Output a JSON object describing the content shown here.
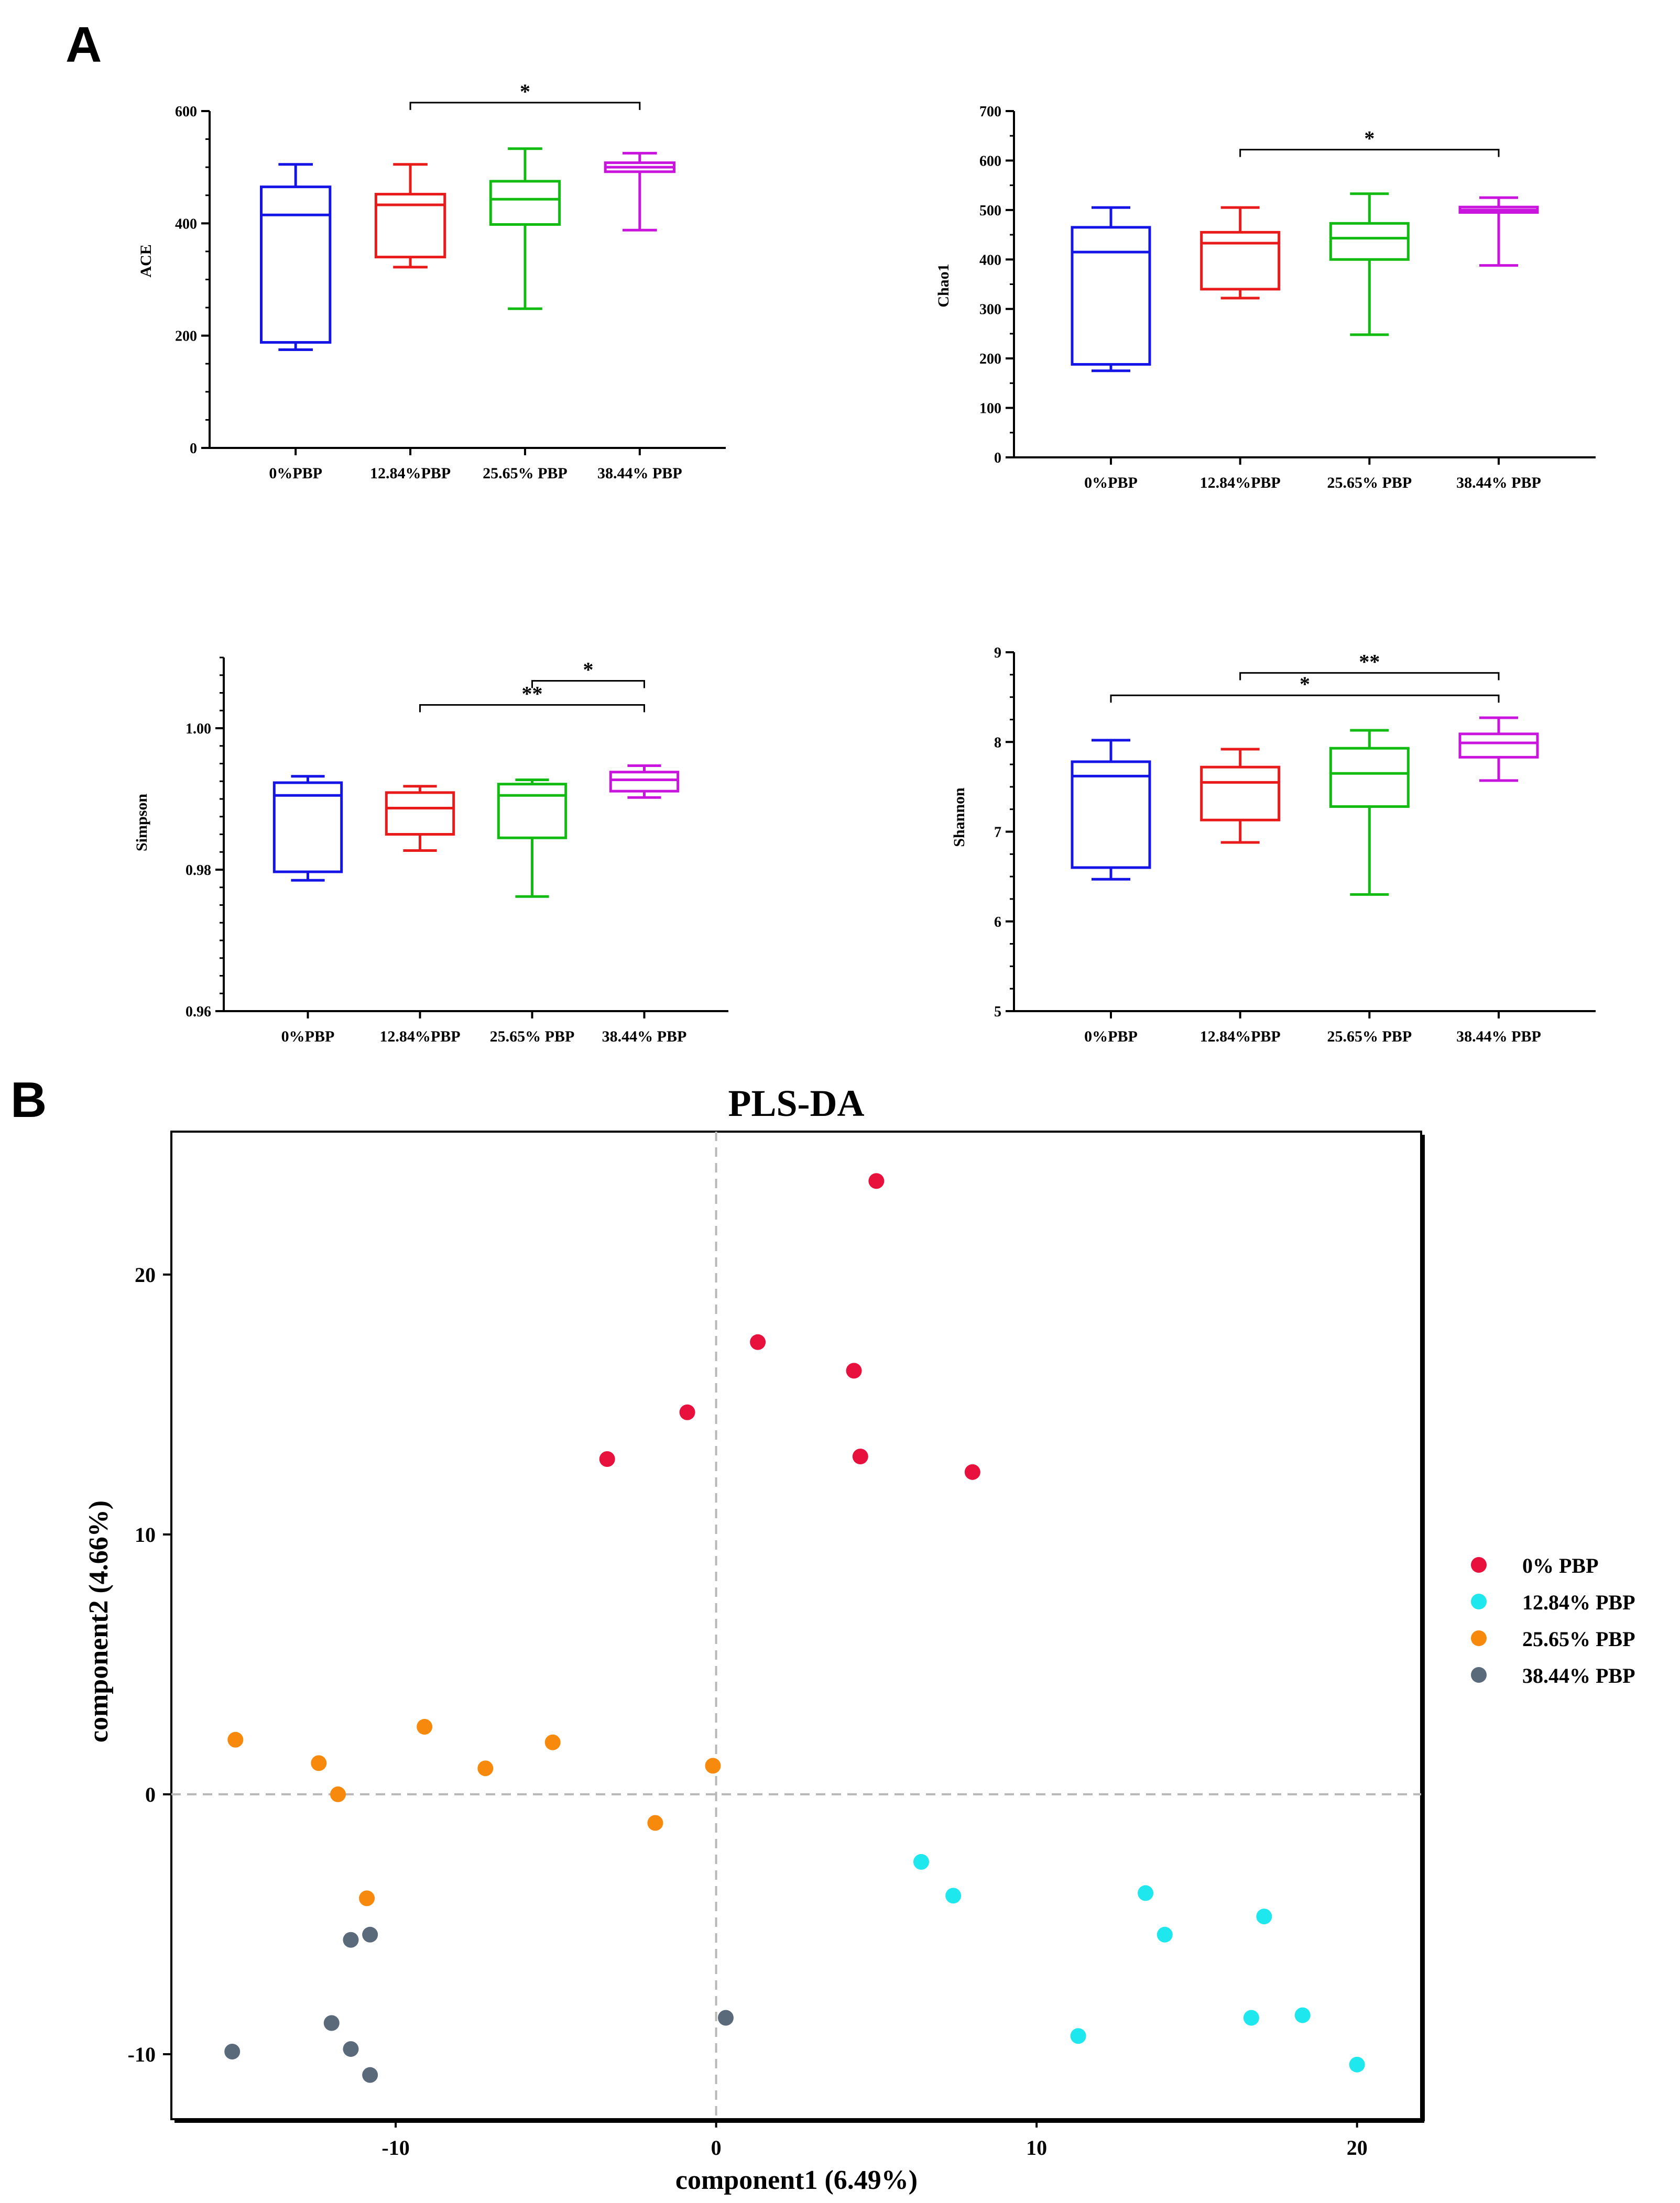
{
  "panel_labels": {
    "a": "A",
    "b": "B"
  },
  "colors": {
    "g0": "#1414e6",
    "g1": "#e81a1a",
    "g2": "#12bb12",
    "g3": "#c814dc",
    "red": "#e8103c",
    "cyan": "#1ee8ee",
    "orange": "#f7890c",
    "slate": "#5a6a7a",
    "axis": "#000000",
    "zero": "#b8b8b8"
  },
  "chart_data": [
    {
      "id": "ace",
      "type": "box",
      "ylabel": "ACE",
      "categories": [
        "0%PBP",
        "12.84%PBP",
        "25.65% PBP",
        "38.44% PBP"
      ],
      "ylim": [
        0,
        600
      ],
      "yticks": [
        {
          "v": 0,
          "label": "0"
        },
        {
          "v": 200,
          "label": "200"
        },
        {
          "v": 400,
          "label": "400"
        },
        {
          "v": 600,
          "label": "600"
        }
      ],
      "minor_step": 50,
      "boxes": [
        {
          "min": 175,
          "q1": 188,
          "median": 415,
          "q3": 465,
          "max": 505
        },
        {
          "min": 322,
          "q1": 340,
          "median": 433,
          "q3": 452,
          "max": 505
        },
        {
          "min": 248,
          "q1": 398,
          "median": 443,
          "q3": 475,
          "max": 533
        },
        {
          "min": 388,
          "q1": 492,
          "median": 500,
          "q3": 508,
          "max": 525
        }
      ],
      "sig": [
        {
          "from": 1,
          "to": 3,
          "y": 615,
          "label": "*"
        }
      ]
    },
    {
      "id": "chao1",
      "type": "box",
      "ylabel": "Chao1",
      "categories": [
        "0%PBP",
        "12.84%PBP",
        "25.65% PBP",
        "38.44% PBP"
      ],
      "ylim": [
        0,
        700
      ],
      "yticks": [
        {
          "v": 0,
          "label": "0"
        },
        {
          "v": 100,
          "label": "100"
        },
        {
          "v": 200,
          "label": "200"
        },
        {
          "v": 300,
          "label": "300"
        },
        {
          "v": 400,
          "label": "400"
        },
        {
          "v": 500,
          "label": "500"
        },
        {
          "v": 600,
          "label": "600"
        },
        {
          "v": 700,
          "label": "700"
        }
      ],
      "minor_step": 50,
      "boxes": [
        {
          "min": 175,
          "q1": 188,
          "median": 415,
          "q3": 465,
          "max": 505
        },
        {
          "min": 322,
          "q1": 340,
          "median": 433,
          "q3": 455,
          "max": 505
        },
        {
          "min": 248,
          "q1": 400,
          "median": 443,
          "q3": 473,
          "max": 533
        },
        {
          "min": 388,
          "q1": 495,
          "median": 500,
          "q3": 506,
          "max": 525
        }
      ],
      "sig": [
        {
          "from": 1,
          "to": 3,
          "y": 622,
          "label": "*"
        }
      ]
    },
    {
      "id": "simpson",
      "type": "box",
      "ylabel": "Simpson",
      "categories": [
        "0%PBP",
        "12.84%PBP",
        "25.65% PBP",
        "38.44% PBP"
      ],
      "ylim": [
        0.96,
        1.01
      ],
      "yticks": [
        {
          "v": 0.96,
          "label": "0.96"
        },
        {
          "v": 0.98,
          "label": "0.98"
        },
        {
          "v": 1.0,
          "label": "1.00"
        }
      ],
      "minor_step": 0.0025,
      "boxes": [
        {
          "min": 0.9785,
          "q1": 0.9797,
          "median": 0.9905,
          "q3": 0.9923,
          "max": 0.9932
        },
        {
          "min": 0.9827,
          "q1": 0.985,
          "median": 0.9887,
          "q3": 0.9909,
          "max": 0.9918
        },
        {
          "min": 0.9762,
          "q1": 0.9845,
          "median": 0.9905,
          "q3": 0.9921,
          "max": 0.9927
        },
        {
          "min": 0.9902,
          "q1": 0.9911,
          "median": 0.9927,
          "q3": 0.9938,
          "max": 0.9947
        }
      ],
      "sig": [
        {
          "from": 2,
          "to": 3,
          "y": 1.0067,
          "label": "*"
        },
        {
          "from": 1,
          "to": 3,
          "y": 1.0033,
          "label": "**"
        }
      ]
    },
    {
      "id": "shannon",
      "type": "box",
      "ylabel": "Shannon",
      "categories": [
        "0%PBP",
        "12.84%PBP",
        "25.65% PBP",
        "38.44% PBP"
      ],
      "ylim": [
        5,
        9
      ],
      "yticks": [
        {
          "v": 5,
          "label": "5"
        },
        {
          "v": 6,
          "label": "6"
        },
        {
          "v": 7,
          "label": "7"
        },
        {
          "v": 8,
          "label": "8"
        },
        {
          "v": 9,
          "label": "9"
        }
      ],
      "minor_step": 0.25,
      "boxes": [
        {
          "min": 6.47,
          "q1": 6.6,
          "median": 7.62,
          "q3": 7.78,
          "max": 8.02
        },
        {
          "min": 6.88,
          "q1": 7.13,
          "median": 7.55,
          "q3": 7.72,
          "max": 7.92
        },
        {
          "min": 6.3,
          "q1": 7.28,
          "median": 7.65,
          "q3": 7.93,
          "max": 8.13
        },
        {
          "min": 7.57,
          "q1": 7.83,
          "median": 7.99,
          "q3": 8.09,
          "max": 8.27
        }
      ],
      "sig": [
        {
          "from": 1,
          "to": 3,
          "y": 8.77,
          "label": "**"
        },
        {
          "from": 0,
          "to": 3,
          "y": 8.52,
          "label": "*"
        }
      ]
    },
    {
      "id": "plsda",
      "type": "scatter",
      "title": "PLS-DA",
      "xlabel": "component1 (6.49%)",
      "ylabel": "component2 (4.66%)",
      "xlim": [
        -17,
        22
      ],
      "ylim": [
        -12.5,
        25.5
      ],
      "xticks": [
        {
          "v": -10,
          "label": "-10"
        },
        {
          "v": 0,
          "label": "0"
        },
        {
          "v": 10,
          "label": "10"
        },
        {
          "v": 20,
          "label": "20"
        }
      ],
      "yticks": [
        {
          "v": -10,
          "label": "-10"
        },
        {
          "v": 0,
          "label": "0"
        },
        {
          "v": 10,
          "label": "10"
        },
        {
          "v": 20,
          "label": "20"
        }
      ],
      "legend_position": "right",
      "series": [
        {
          "name": "0% PBP",
          "color": "red",
          "points": [
            [
              5.0,
              23.6
            ],
            [
              1.3,
              17.4
            ],
            [
              4.3,
              16.3
            ],
            [
              -0.9,
              14.7
            ],
            [
              -3.4,
              12.9
            ],
            [
              4.5,
              13.0
            ],
            [
              8.0,
              12.4
            ]
          ]
        },
        {
          "name": "12.84% PBP",
          "color": "cyan",
          "points": [
            [
              6.4,
              -2.6
            ],
            [
              7.4,
              -3.9
            ],
            [
              13.4,
              -3.8
            ],
            [
              14.0,
              -5.4
            ],
            [
              17.1,
              -4.7
            ],
            [
              11.3,
              -9.3
            ],
            [
              16.7,
              -8.6
            ],
            [
              18.3,
              -8.5
            ],
            [
              20.0,
              -10.4
            ]
          ]
        },
        {
          "name": "25.65% PBP",
          "color": "orange",
          "points": [
            [
              -15.0,
              2.1
            ],
            [
              -12.4,
              1.2
            ],
            [
              -11.8,
              0.0
            ],
            [
              -9.1,
              2.6
            ],
            [
              -7.2,
              1.0
            ],
            [
              -5.1,
              2.0
            ],
            [
              -0.1,
              1.1
            ],
            [
              -1.9,
              -1.1
            ],
            [
              -10.9,
              -4.0
            ]
          ]
        },
        {
          "name": "38.44% PBP",
          "color": "slate",
          "points": [
            [
              -11.4,
              -5.6
            ],
            [
              -10.8,
              -5.4
            ],
            [
              -12.0,
              -8.8
            ],
            [
              -11.4,
              -9.8
            ],
            [
              -10.8,
              -10.8
            ],
            [
              -15.1,
              -9.9
            ],
            [
              0.3,
              -8.6
            ]
          ]
        }
      ]
    }
  ]
}
